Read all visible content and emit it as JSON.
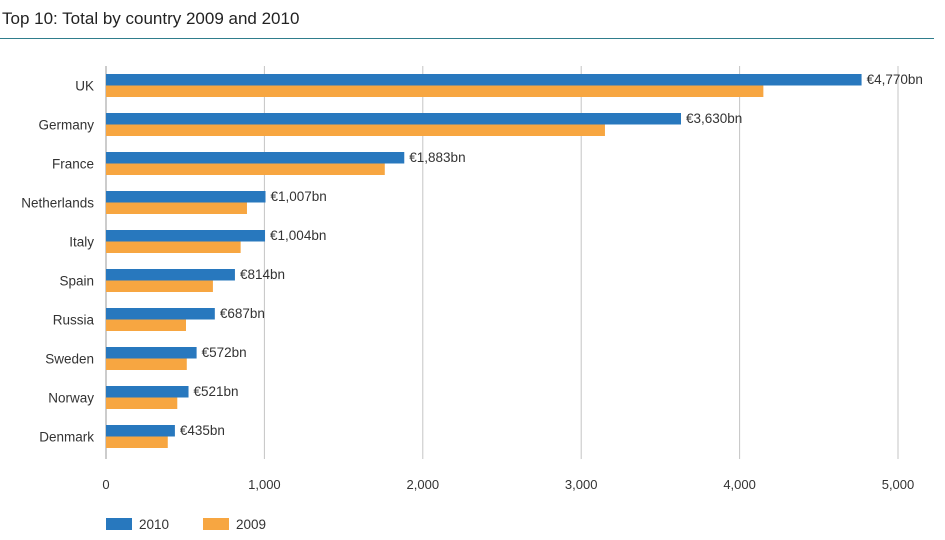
{
  "header": {
    "title": "Top 10: Total by country 2009 and 2010"
  },
  "chart_data": {
    "type": "bar",
    "orientation": "horizontal",
    "title": "Top 10: Total by country 2009 and 2010",
    "categories": [
      "UK",
      "Germany",
      "France",
      "Netherlands",
      "Italy",
      "Spain",
      "Russia",
      "Sweden",
      "Norway",
      "Denmark"
    ],
    "series": [
      {
        "name": "2010",
        "color": "#2878be",
        "values": [
          4770,
          3630,
          1883,
          1007,
          1004,
          814,
          687,
          572,
          521,
          435
        ],
        "labels": [
          "€4,770bn",
          "€3,630bn",
          "€1,883bn",
          "€1,007bn",
          "€1,004bn",
          "€814bn",
          "€687bn",
          "€572bn",
          "€521bn",
          "€435bn"
        ]
      },
      {
        "name": "2009",
        "color": "#f7a641",
        "values": [
          4150,
          3150,
          1760,
          890,
          850,
          675,
          505,
          510,
          450,
          390
        ]
      }
    ],
    "xlim": [
      0,
      5000
    ],
    "xticks": [
      0,
      1000,
      2000,
      3000,
      4000,
      5000
    ],
    "xtick_labels": [
      "0",
      "1,000",
      "2,000",
      "3,000",
      "4,000",
      "5,000"
    ],
    "grid": "vertical",
    "legend": "bottom-left"
  }
}
